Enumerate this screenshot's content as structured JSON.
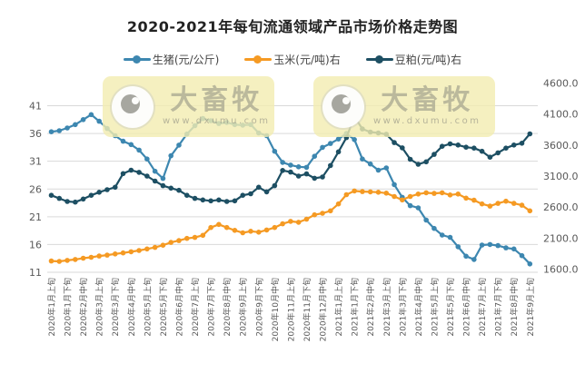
{
  "watermark": {
    "brand": "大畜牧",
    "url": "www.dxumu.com"
  },
  "chart_data": {
    "type": "line",
    "title": "2020-2021年每旬流通领域产品市场价格走势图",
    "grid": true,
    "legend_position": "top",
    "x_label_every_n_points": 2,
    "x_labels": [
      "2020年1月上旬",
      "2020年1月下旬",
      "2020年2月中旬",
      "2020年3月上旬",
      "2020年3月下旬",
      "2020年4月中旬",
      "2020年5月上旬",
      "2020年5月下旬",
      "2020年6月中旬",
      "2020年7月上旬",
      "2020年7月下旬",
      "2020年8月中旬",
      "2020年9月上旬",
      "2020年9月下旬",
      "2020年10月中旬",
      "2020年11月上旬",
      "2020年11月下旬",
      "2020年12月中旬",
      "2021年1月上旬",
      "2021年1月下旬",
      "2021年2月中旬",
      "2021年3月上旬",
      "2021年3月下旬",
      "2021年4月中旬",
      "2021年5月上旬",
      "2021年5月下旬",
      "2021年6月中旬",
      "2021年7月上旬",
      "2021年7月下旬",
      "2021年8月中旬",
      "2021年9月上旬"
    ],
    "left_axis": {
      "ticks": [
        11,
        16,
        21,
        26,
        31,
        36,
        41
      ],
      "min": 11,
      "max": 41
    },
    "right_axis": {
      "ticks": [
        1600,
        2100,
        2600,
        3100,
        3600,
        4100,
        4600
      ],
      "min": 1600,
      "max": 4600,
      "decimals": 1
    },
    "series": [
      {
        "name": "生猪(元/公斤)",
        "axis": "left",
        "color": "#3d87b0",
        "values": [
          36.3,
          36.5,
          37.0,
          37.6,
          38.5,
          39.4,
          38.2,
          36.9,
          35.6,
          34.6,
          34.0,
          33.0,
          31.4,
          29.2,
          27.9,
          32.0,
          33.9,
          35.9,
          37.4,
          38.7,
          38.3,
          37.8,
          38.0,
          37.6,
          37.5,
          37.6,
          36.1,
          35.6,
          32.8,
          30.8,
          30.3,
          30.0,
          29.9,
          31.9,
          33.5,
          34.2,
          35.0,
          36.0,
          34.9,
          31.4,
          30.5,
          29.4,
          29.8,
          26.8,
          24.5,
          23.0,
          22.6,
          20.4,
          18.9,
          17.7,
          17.3,
          15.6,
          13.9,
          13.3,
          15.9,
          16.0,
          15.8,
          15.4,
          15.2,
          14.0,
          12.5
        ]
      },
      {
        "name": "玉米(元/吨)右",
        "axis": "right",
        "color": "#f59a23",
        "values": [
          1730,
          1725,
          1740,
          1755,
          1775,
          1790,
          1810,
          1825,
          1845,
          1860,
          1880,
          1900,
          1925,
          1950,
          1985,
          2030,
          2060,
          2095,
          2110,
          2145,
          2270,
          2320,
          2270,
          2225,
          2185,
          2210,
          2195,
          2230,
          2270,
          2330,
          2370,
          2355,
          2405,
          2475,
          2500,
          2540,
          2650,
          2800,
          2860,
          2850,
          2845,
          2840,
          2825,
          2770,
          2715,
          2770,
          2810,
          2830,
          2820,
          2830,
          2795,
          2810,
          2745,
          2710,
          2650,
          2615,
          2660,
          2695,
          2660,
          2630,
          2540
        ]
      },
      {
        "name": "豆粕(元/吨)右",
        "axis": "right",
        "color": "#1d4f63",
        "values": [
          2790,
          2740,
          2690,
          2680,
          2730,
          2790,
          2840,
          2880,
          2920,
          3140,
          3195,
          3160,
          3100,
          3020,
          2945,
          2905,
          2870,
          2790,
          2740,
          2715,
          2700,
          2715,
          2690,
          2700,
          2790,
          2815,
          2920,
          2845,
          2945,
          3190,
          3165,
          3100,
          3135,
          3065,
          3085,
          3270,
          3490,
          3720,
          4060,
          3860,
          3810,
          3795,
          3775,
          3640,
          3555,
          3370,
          3290,
          3330,
          3450,
          3580,
          3620,
          3600,
          3565,
          3550,
          3500,
          3405,
          3475,
          3550,
          3600,
          3630,
          3780
        ]
      }
    ]
  }
}
